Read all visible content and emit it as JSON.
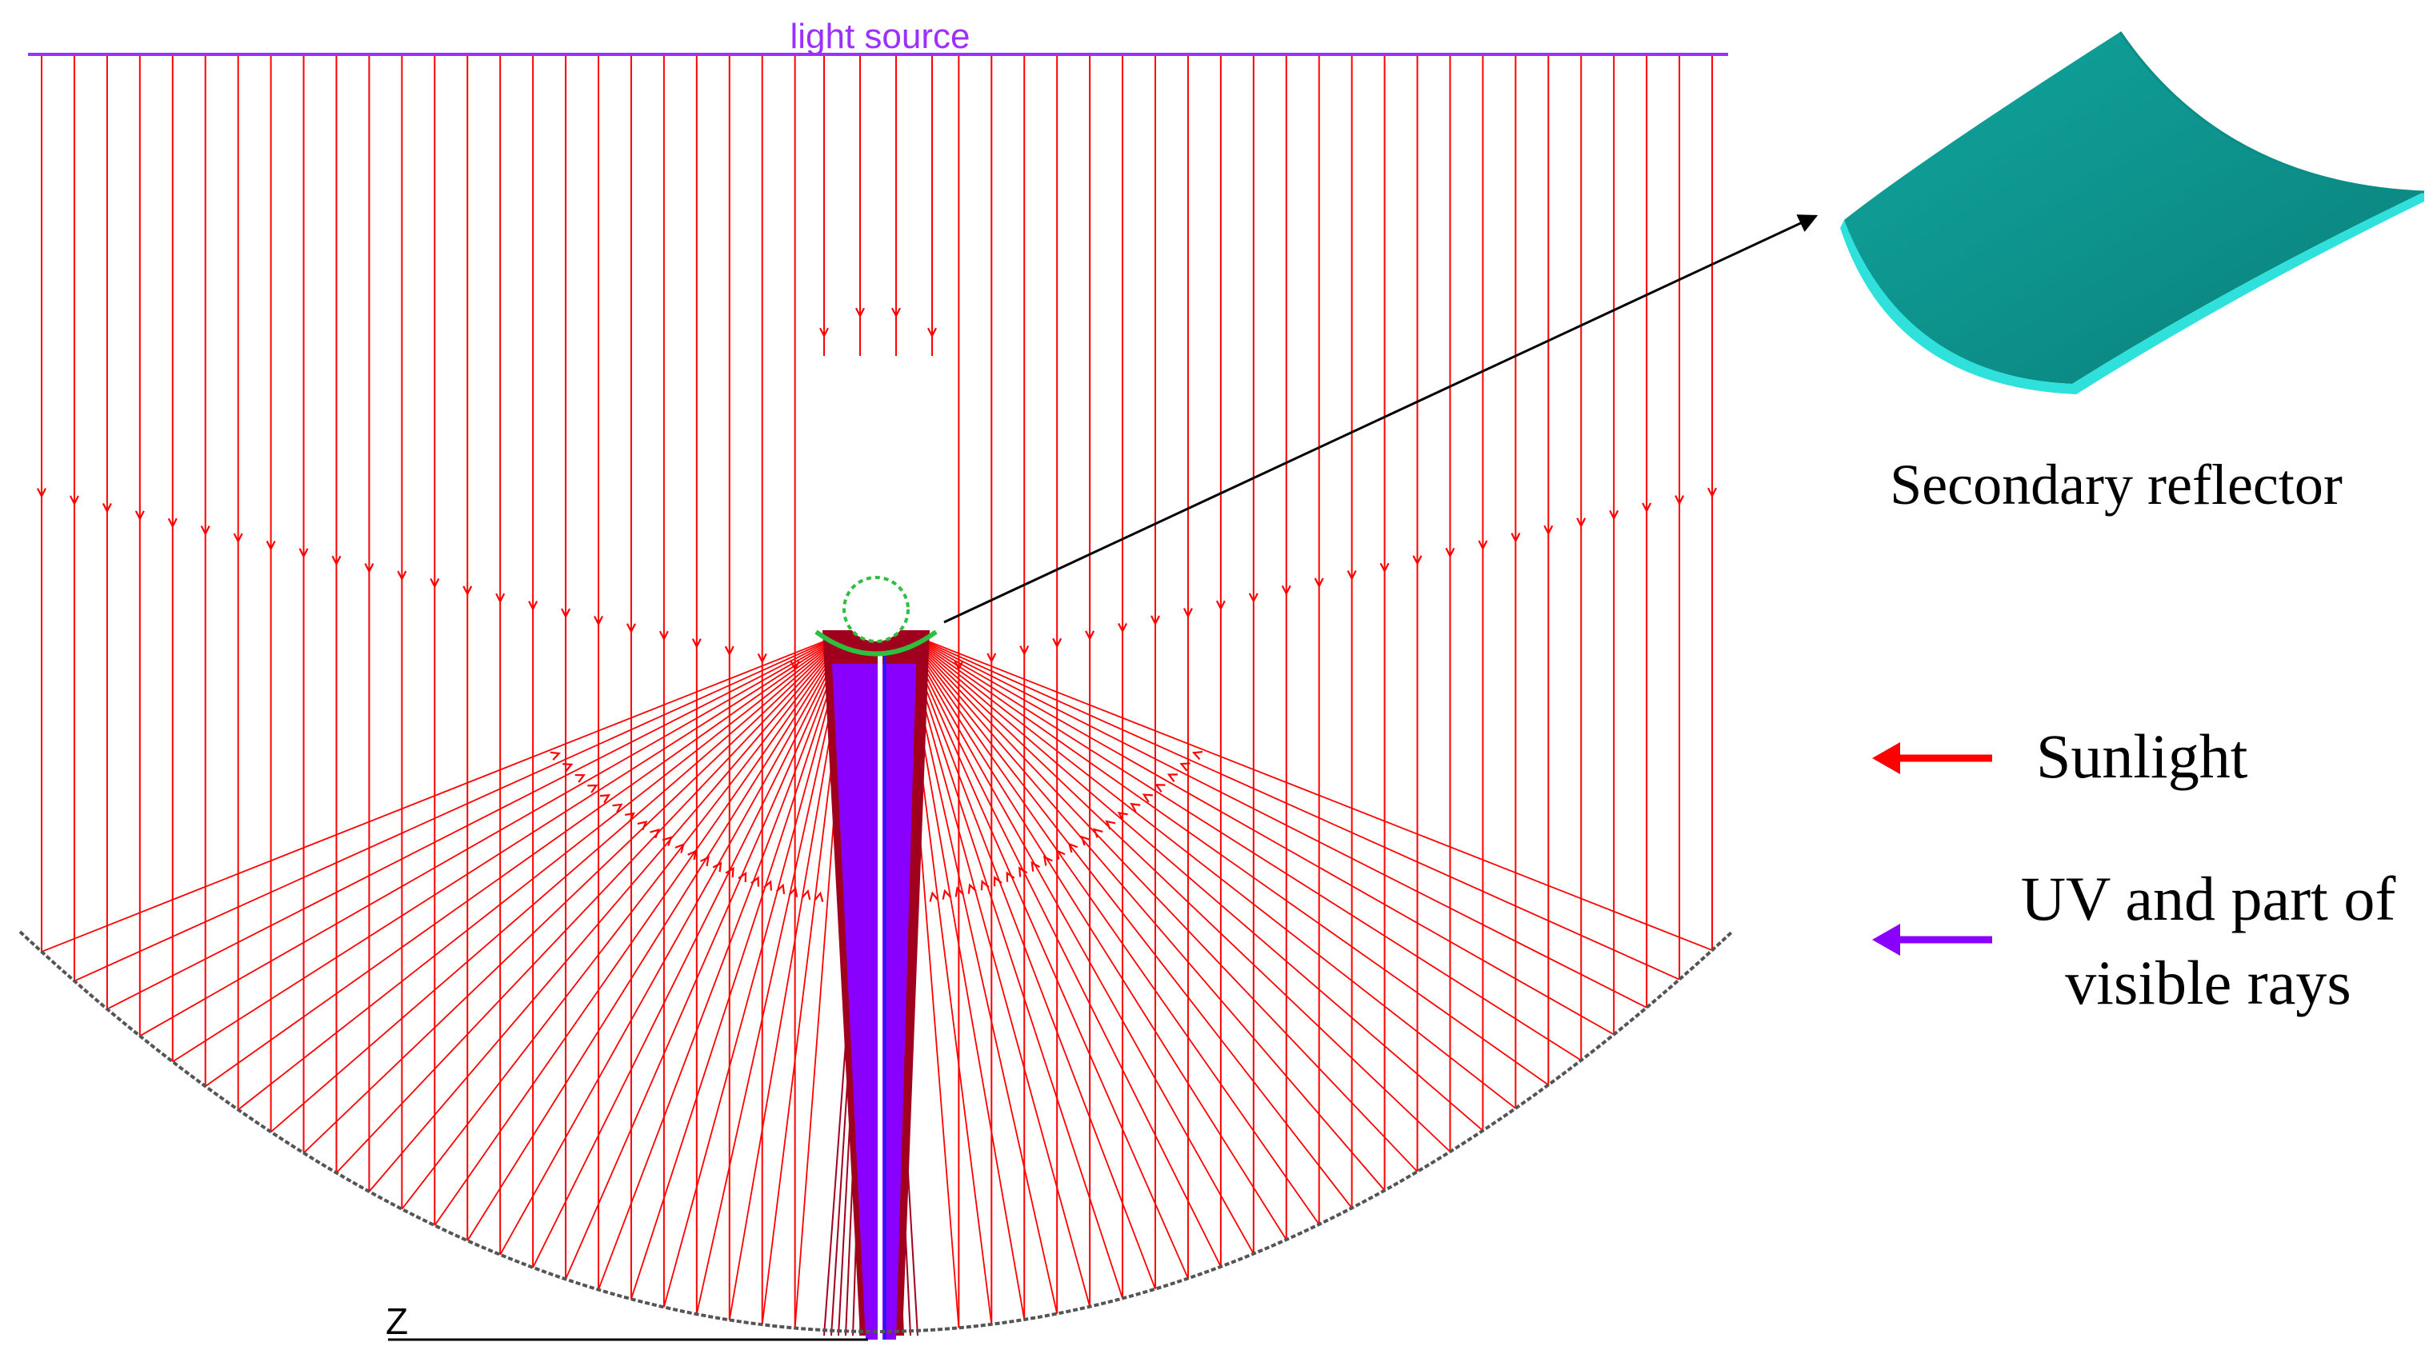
{
  "diagram": {
    "light_source_label": "light source",
    "axis_label": "Z",
    "secondary_reflector_label": "Secondary reflector",
    "legend": {
      "sunlight": {
        "label": "Sunlight",
        "color": "#ff0000"
      },
      "uv": {
        "line1": "UV and part of",
        "line2": "visible rays",
        "color": "#8a2be2"
      }
    },
    "colors": {
      "light_source_line": "#9b30ff",
      "sun_ray": "#ff0000",
      "uv_beam": "#8a00ff",
      "dark_red_core": "#a0001e",
      "reflector_surface": "#555555",
      "secondary_reflector": "#1aa39c",
      "receiver_outline": "#2fbf3f"
    }
  }
}
